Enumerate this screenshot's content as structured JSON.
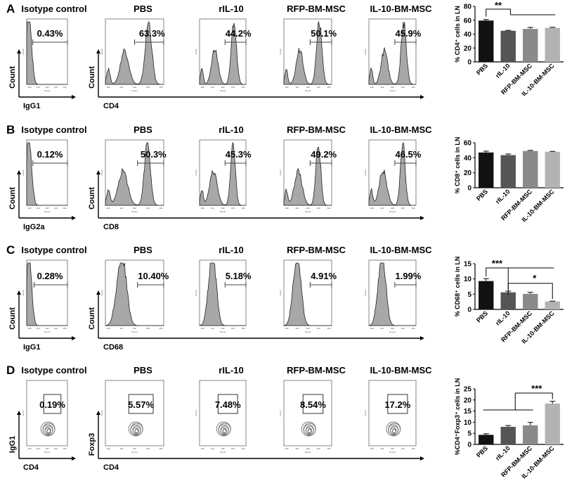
{
  "figure": {
    "rows": [
      {
        "panel_label": "A",
        "titles": [
          "Isotype control",
          "PBS",
          "rIL-10",
          "RFP-BM-MSC",
          "IL-10-BM-MSC"
        ],
        "percents": [
          "0.43%",
          "63.3%",
          "44.2%",
          "50.1%",
          "45.9%"
        ],
        "iso_axis_label": "IgG1",
        "marker_axis_label": "CD4",
        "count_label": "Count",
        "x_channel": "FL4-H",
        "y_channel": "Count"
      },
      {
        "panel_label": "B",
        "titles": [
          "Isotype control",
          "PBS",
          "rIL-10",
          "RFP-BM-MSC",
          "IL-10-BM-MSC"
        ],
        "percents": [
          "0.12%",
          "50.3%",
          "45.3%",
          "49.2%",
          "46.5%"
        ],
        "iso_axis_label": "IgG2a",
        "marker_axis_label": "CD8",
        "count_label": "Count",
        "x_channel": "FL4-H",
        "y_channel": "Count"
      },
      {
        "panel_label": "C",
        "titles": [
          "Isotype control",
          "PBS",
          "rIL-10",
          "RFP-BM-MSC",
          "IL-10-BM-MSC"
        ],
        "percents": [
          "0.28%",
          "10.40%",
          "5.18%",
          "4.91%",
          "1.99%"
        ],
        "iso_axis_label": "IgG1",
        "marker_axis_label": "CD68",
        "count_label": "Count",
        "x_channel": "FL1-H",
        "y_channel": "Count"
      },
      {
        "panel_label": "D",
        "titles": [
          "Isotype control",
          "PBS",
          "rIL-10",
          "RFP-BM-MSC",
          "IL-10-BM-MSC"
        ],
        "percents": [
          "0.19%",
          "5.57%",
          "7.48%",
          "8.54%",
          "17.2%"
        ],
        "iso_axis_label": "CD4",
        "marker_axis_label": "CD4",
        "iso_y_label": "IgG1",
        "marker_y_label": "Foxp3",
        "x_channel": "FL4-H",
        "y_channel": "FL2-H"
      }
    ]
  },
  "chart_data": [
    {
      "type": "bar",
      "panel": "A",
      "categories": [
        "PBS",
        "rIL-10",
        "RFP-BM-MSC",
        "IL-10-BM-MSC"
      ],
      "values": [
        59.5,
        44.8,
        47.5,
        49.0
      ],
      "errors": [
        1.5,
        0.6,
        2.2,
        0.8
      ],
      "colors": [
        "#111111",
        "#555555",
        "#8a8a8a",
        "#b3b3b3"
      ],
      "ylabel": "% CD4⁺ cells in LN",
      "ylim": [
        0,
        80
      ],
      "yticks": [
        0,
        20,
        40,
        60,
        80
      ],
      "annotations": [
        {
          "label": "**",
          "from": "PBS",
          "to": [
            "rIL-10",
            "RFP-BM-MSC",
            "IL-10-BM-MSC"
          ]
        }
      ]
    },
    {
      "type": "bar",
      "panel": "B",
      "categories": [
        "PBS",
        "rIL-10",
        "RFP-BM-MSC",
        "IL-10-BM-MSC"
      ],
      "values": [
        47.0,
        43.5,
        49.0,
        48.0
      ],
      "errors": [
        1.8,
        1.5,
        0.8,
        0.5
      ],
      "colors": [
        "#111111",
        "#555555",
        "#8a8a8a",
        "#b3b3b3"
      ],
      "ylabel": "% CD8⁺ cells in LN",
      "ylim": [
        0,
        60
      ],
      "yticks": [
        0,
        20,
        40,
        60
      ],
      "annotations": []
    },
    {
      "type": "bar",
      "panel": "C",
      "categories": [
        "PBS",
        "rIL-10",
        "RFP-BM-MSC",
        "IL-10-BM-MSC"
      ],
      "values": [
        9.3,
        5.6,
        5.1,
        2.6
      ],
      "errors": [
        0.8,
        0.4,
        0.5,
        0.1
      ],
      "colors": [
        "#111111",
        "#555555",
        "#8a8a8a",
        "#b3b3b3"
      ],
      "ylabel": "% CD68⁺ cells in LN",
      "ylim": [
        0,
        15
      ],
      "yticks": [
        0,
        5,
        10,
        15
      ],
      "annotations": [
        {
          "label": "***",
          "from": "PBS",
          "to": [
            "rIL-10",
            "RFP-BM-MSC",
            "IL-10-BM-MSC"
          ]
        },
        {
          "label": "*",
          "from": "rIL-10",
          "to": [
            "IL-10-BM-MSC"
          ]
        }
      ]
    },
    {
      "type": "bar",
      "panel": "D",
      "categories": [
        "PBS",
        "rIL-10",
        "RFP-BM-MSC",
        "IL-10-BM-MSC"
      ],
      "values": [
        4.3,
        7.9,
        8.6,
        18.4
      ],
      "errors": [
        0.5,
        0.6,
        1.3,
        1.0
      ],
      "colors": [
        "#111111",
        "#555555",
        "#8a8a8a",
        "#b3b3b3"
      ],
      "ylabel": "%CD4⁺Foxp3⁺ cells in LN",
      "ylim": [
        0,
        25
      ],
      "yticks": [
        0,
        5,
        10,
        15,
        20,
        25
      ],
      "annotations": [
        {
          "label": "***",
          "from": "IL-10-BM-MSC",
          "to": [
            "PBS",
            "rIL-10",
            "RFP-BM-MSC"
          ]
        }
      ]
    }
  ]
}
